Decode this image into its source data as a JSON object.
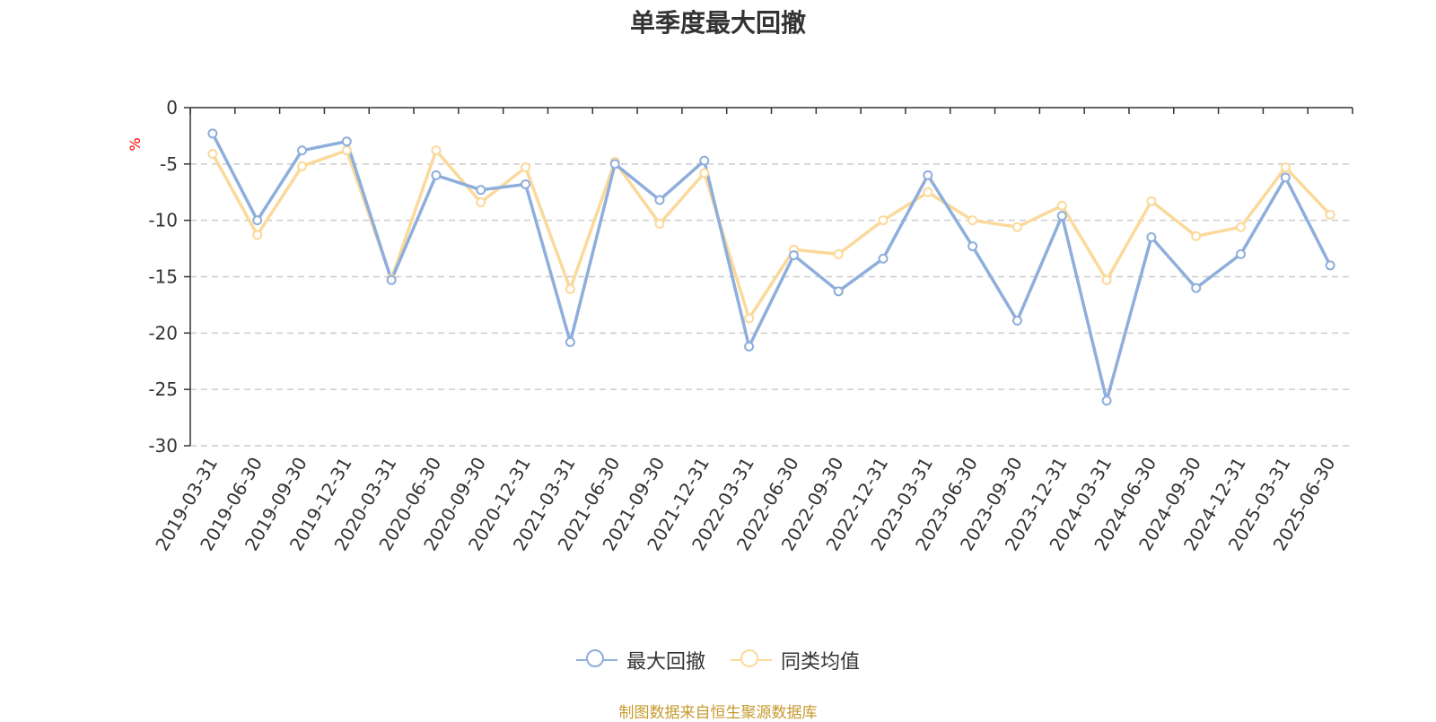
{
  "source": "制图数据来自恒生聚源数据库",
  "chart_data": {
    "type": "line",
    "title": "单季度最大回撤",
    "ylabel": "%",
    "ylim": [
      -30,
      0
    ],
    "yticks": [
      0,
      -5,
      -10,
      -15,
      -20,
      -25,
      -30
    ],
    "grid": true,
    "legend_position": "bottom",
    "categories": [
      "2019-03-31",
      "2019-06-30",
      "2019-09-30",
      "2019-12-31",
      "2020-03-31",
      "2020-06-30",
      "2020-09-30",
      "2020-12-31",
      "2021-03-31",
      "2021-06-30",
      "2021-09-30",
      "2021-12-31",
      "2022-03-31",
      "2022-06-30",
      "2022-09-30",
      "2022-12-31",
      "2023-03-31",
      "2023-06-30",
      "2023-09-30",
      "2023-12-31",
      "2024-03-31",
      "2024-06-30",
      "2024-09-30",
      "2024-12-31",
      "2025-03-31",
      "2025-06-30"
    ],
    "series": [
      {
        "name": "最大回撤",
        "color": "#8eaedb",
        "values": [
          -2.3,
          -10.0,
          -3.8,
          -3.0,
          -15.3,
          -6.0,
          -7.3,
          -6.8,
          -20.8,
          -5.0,
          -8.2,
          -4.7,
          -21.2,
          -13.1,
          -16.3,
          -13.4,
          -6.0,
          -12.3,
          -18.9,
          -9.6,
          -26.0,
          -11.5,
          -16.0,
          -13.0,
          -6.2,
          -14.0
        ]
      },
      {
        "name": "同类均值",
        "color": "#fbd99a",
        "values": [
          -4.1,
          -11.3,
          -5.2,
          -3.8,
          -15.2,
          -3.8,
          -8.4,
          -5.3,
          -16.1,
          -4.8,
          -10.3,
          -5.8,
          -18.7,
          -12.6,
          -13.0,
          -10.0,
          -7.5,
          -10.0,
          -10.6,
          -8.7,
          -15.3,
          -8.3,
          -11.4,
          -10.6,
          -5.3,
          -9.5
        ]
      }
    ]
  }
}
